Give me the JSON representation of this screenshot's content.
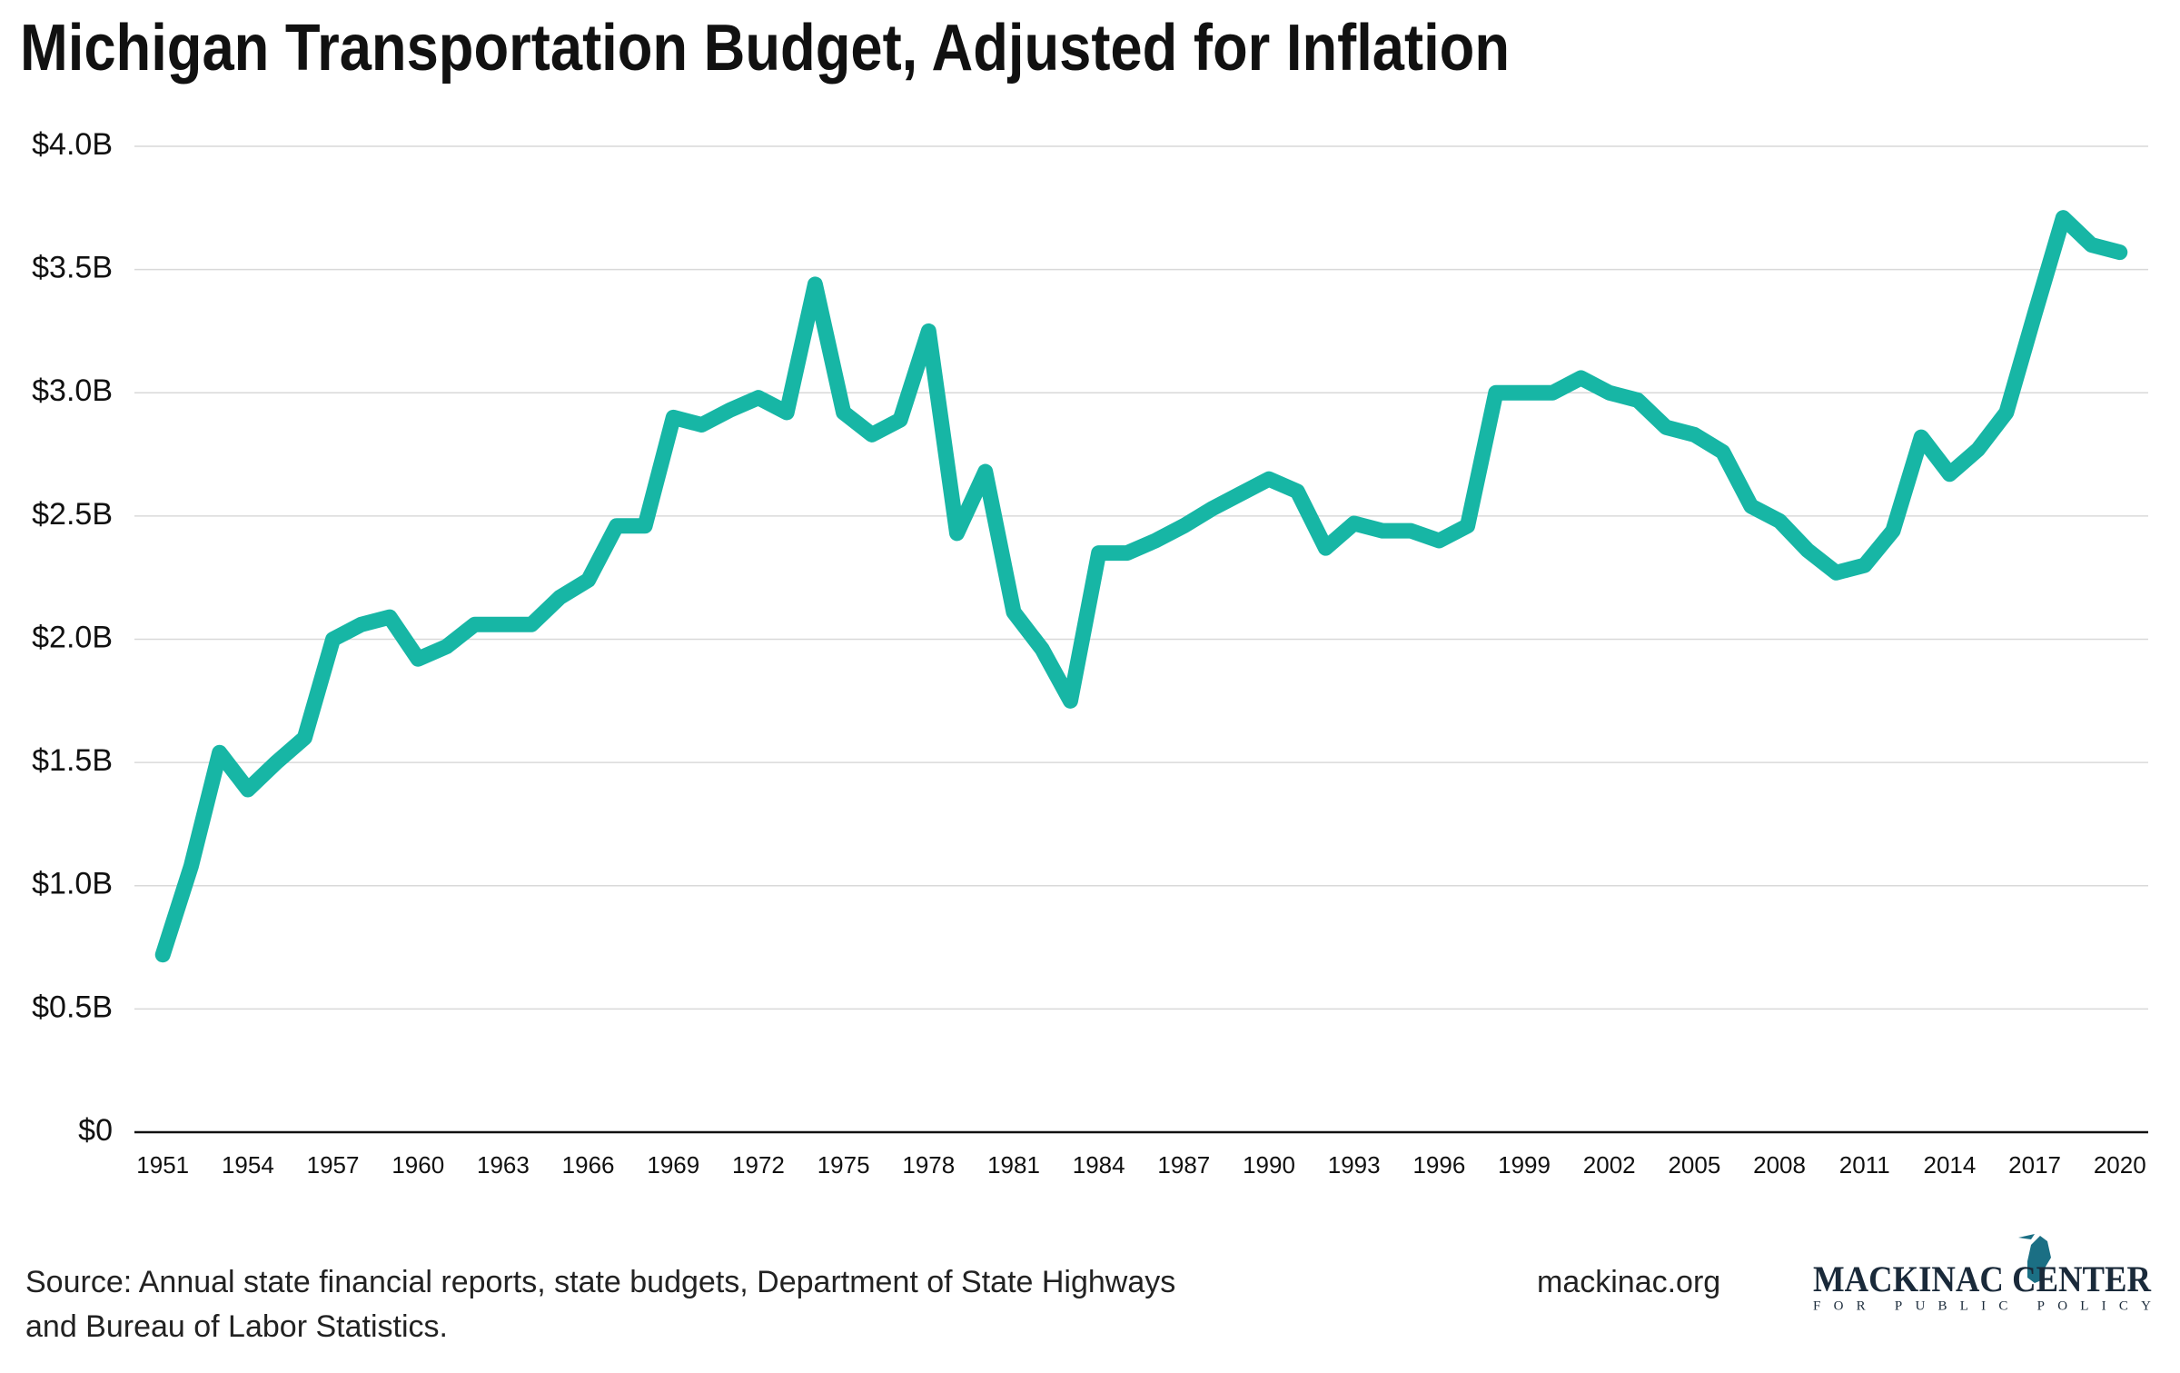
{
  "chart_data": {
    "type": "line",
    "title": "Michigan Transportation Budget, Adjusted for Inflation",
    "x": [
      1951,
      1952,
      1953,
      1954,
      1955,
      1956,
      1957,
      1958,
      1959,
      1960,
      1961,
      1962,
      1963,
      1964,
      1965,
      1966,
      1967,
      1968,
      1969,
      1970,
      1971,
      1972,
      1973,
      1974,
      1975,
      1976,
      1977,
      1978,
      1979,
      1980,
      1981,
      1982,
      1983,
      1984,
      1985,
      1986,
      1987,
      1988,
      1989,
      1990,
      1991,
      1992,
      1993,
      1994,
      1995,
      1996,
      1997,
      1998,
      1999,
      2000,
      2001,
      2002,
      2003,
      2004,
      2005,
      2006,
      2007,
      2008,
      2009,
      2010,
      2011,
      2012,
      2013,
      2014,
      2015,
      2016,
      2017,
      2018,
      2019,
      2020
    ],
    "series": [
      {
        "color": "#17b6a5",
        "values": [
          0.72,
          1.08,
          1.54,
          1.39,
          1.5,
          1.6,
          2.0,
          2.06,
          2.09,
          1.92,
          1.97,
          2.06,
          2.06,
          2.06,
          2.17,
          2.24,
          2.46,
          2.46,
          2.9,
          2.87,
          2.93,
          2.98,
          2.92,
          3.44,
          2.92,
          2.83,
          2.89,
          3.25,
          2.43,
          2.68,
          2.11,
          1.96,
          1.75,
          2.35,
          2.35,
          2.4,
          2.46,
          2.53,
          2.59,
          2.65,
          2.6,
          2.37,
          2.47,
          2.44,
          2.44,
          2.4,
          2.46,
          3.0,
          3.0,
          3.0,
          3.06,
          3.0,
          2.97,
          2.86,
          2.83,
          2.76,
          2.54,
          2.48,
          2.36,
          2.27,
          2.3,
          2.44,
          2.82,
          2.67,
          2.77,
          2.92,
          3.32,
          3.71,
          3.6,
          3.57
        ]
      }
    ],
    "xlim": [
      1950,
      2021
    ],
    "xticks": [
      1951,
      1954,
      1957,
      1960,
      1963,
      1966,
      1969,
      1972,
      1975,
      1978,
      1981,
      1984,
      1987,
      1990,
      1993,
      1996,
      1999,
      2002,
      2005,
      2008,
      2011,
      2014,
      2017,
      2020
    ],
    "ylim": [
      0,
      4
    ],
    "yticks": [
      {
        "value": 0,
        "label": "$0"
      },
      {
        "value": 0.5,
        "label": "$0.5B"
      },
      {
        "value": 1,
        "label": "$1.0B"
      },
      {
        "value": 1.5,
        "label": "$1.5B"
      },
      {
        "value": 2,
        "label": "$2.0B"
      },
      {
        "value": 2.5,
        "label": "$2.5B"
      },
      {
        "value": 3,
        "label": "$3.0B"
      },
      {
        "value": 3.5,
        "label": "$3.5B"
      },
      {
        "value": 4,
        "label": "$4.0B"
      }
    ],
    "grid": true
  },
  "footer": {
    "source": [
      "Source: Annual state financial reports, state budgets, Department of State Highways",
      "and Bureau of Labor Statistics."
    ],
    "website": "mackinac.org",
    "logo_name": "MACKINAC CENTER",
    "logo_tagline": "FOR PUBLIC POLICY"
  }
}
